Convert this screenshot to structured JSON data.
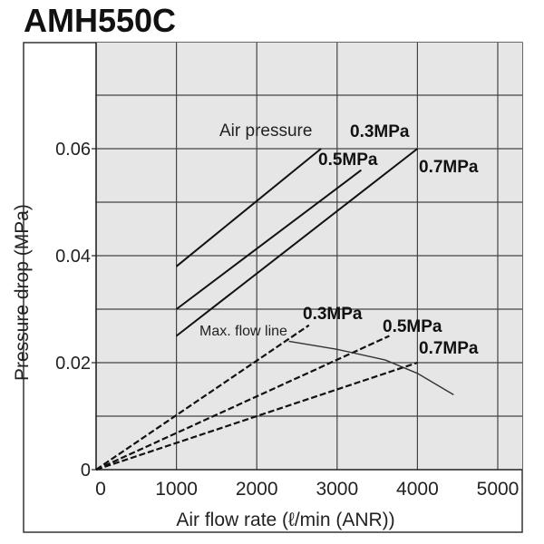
{
  "title": "AMH550C",
  "chart_data": {
    "type": "line",
    "title": "AMH550C",
    "xlabel": "Air flow rate (ℓ/min (ANR))",
    "ylabel": "Pressure drop (MPa)",
    "xlim": [
      0,
      5300
    ],
    "ylim": [
      0,
      0.07
    ],
    "x_ticks": [
      "0",
      "1000",
      "2000",
      "3000",
      "4000",
      "5000"
    ],
    "y_ticks": [
      "0",
      "0.02",
      "0.04",
      "0.06"
    ],
    "grid": true,
    "annotations": [
      "Air pressure",
      "Max. flow line"
    ],
    "series": [
      {
        "name": "Air pressure 0.3MPa",
        "style": "solid",
        "x": [
          1000,
          2800
        ],
        "y": [
          0.038,
          0.06
        ],
        "label": "0.3MPa"
      },
      {
        "name": "Air pressure 0.5MPa",
        "style": "solid",
        "x": [
          1000,
          3300
        ],
        "y": [
          0.03,
          0.056
        ],
        "label": "0.5MPa"
      },
      {
        "name": "Air pressure 0.7MPa",
        "style": "solid",
        "x": [
          1000,
          4000
        ],
        "y": [
          0.025,
          0.06
        ],
        "label": "0.7MPa"
      },
      {
        "name": "Dashed 0.3MPa",
        "style": "dashed",
        "x": [
          0,
          2650
        ],
        "y": [
          0,
          0.027
        ],
        "label": "0.3MPa"
      },
      {
        "name": "Dashed 0.5MPa",
        "style": "dashed",
        "x": [
          0,
          3650
        ],
        "y": [
          0,
          0.025
        ],
        "label": "0.5MPa"
      },
      {
        "name": "Dashed 0.7MPa",
        "style": "dashed",
        "x": [
          0,
          4000
        ],
        "y": [
          0,
          0.02
        ],
        "label": "0.7MPa"
      },
      {
        "name": "Max. flow line",
        "style": "solid",
        "x": [
          2400,
          3000,
          3600,
          4000,
          4450
        ],
        "y": [
          0.024,
          0.0225,
          0.0205,
          0.018,
          0.014
        ]
      }
    ]
  }
}
